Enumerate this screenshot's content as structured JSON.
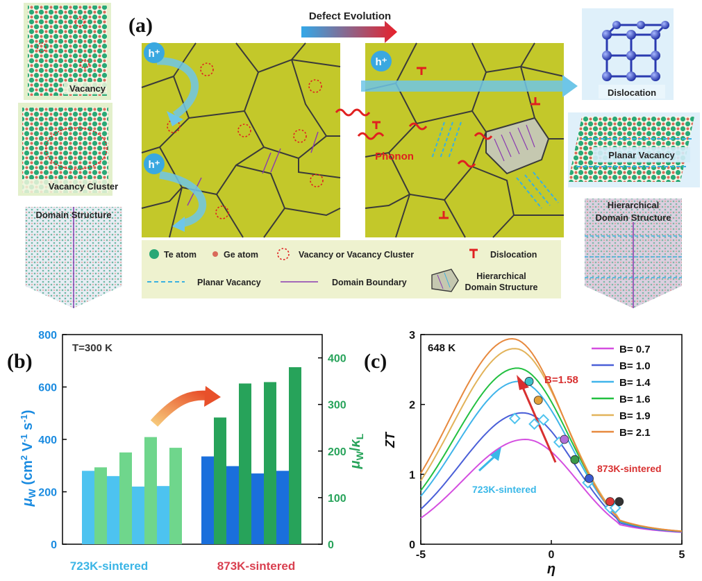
{
  "panel_a": {
    "label": "(a)",
    "arrow_title": "Defect Evolution",
    "left_insets": {
      "vacancy": "Vacancy",
      "vacancy_cluster": "Vacancy Cluster",
      "domain_structure": "Domain Structure"
    },
    "right_insets": {
      "dislocation": "Dislocation",
      "planar_vacancy": "Planar Vacancy",
      "hierarchical_domain": [
        "Hierarchical",
        "Domain Structure"
      ]
    },
    "hole": "h⁺",
    "phonon": "Phonon",
    "legend": {
      "te_atom": "Te atom",
      "ge_atom": "Ge atom",
      "vacancy": "Vacancy or Vacancy Cluster",
      "dislocation": "Dislocation",
      "planar_vacancy": "Planar Vacancy",
      "domain_boundary": "Domain Boundary",
      "hierarchical": [
        "Hierarchical",
        "Domain Structure"
      ]
    }
  },
  "colors": {
    "grain_fill": "#c3c82a",
    "grain_line": "#3a3a3a",
    "te_atom": "#2aa876",
    "ge_atom": "#d96a5a",
    "vacancy": "#e02020",
    "legend_bg": "#eef2cf",
    "bar_723_mu": "#4dc3f0",
    "bar_723_ratio": "#6fd68c",
    "bar_873_mu": "#1a6fdc",
    "bar_873_ratio": "#27a35a",
    "axis_left": "#1a8be0",
    "axis_right": "#27a35a",
    "label_723": "#3ab5e6",
    "label_873": "#d94050"
  },
  "chart_data": [
    {
      "panel": "(b)",
      "type": "bar",
      "annotation": "T=300 K",
      "categories": [
        "723K-sintered",
        "873K-sintered"
      ],
      "ylabel_left": "μW (cm2 V-1 s-1)",
      "ylabel_right": "μW/κL",
      "ylim_left": [
        0,
        800
      ],
      "ylim_right": [
        0,
        450
      ],
      "yticks_left": [
        0,
        200,
        400,
        600,
        800
      ],
      "yticks_right": [
        0,
        100,
        200,
        300,
        400
      ],
      "series": [
        {
          "group": "723K-sintered",
          "mu_w": [
            280,
            260,
            220,
            222
          ],
          "mu_w_over_kappa_L": [
            165,
            197,
            230,
            207
          ]
        },
        {
          "group": "873K-sintered",
          "mu_w": [
            335,
            298,
            270,
            280
          ],
          "mu_w_over_kappa_L": [
            272,
            345,
            348,
            380
          ]
        }
      ]
    },
    {
      "panel": "(c)",
      "type": "line",
      "annotation": "648 K",
      "xlabel": "η",
      "ylabel": "ZT",
      "xlim": [
        -5,
        5
      ],
      "ylim": [
        0,
        3
      ],
      "xticks": [
        -5,
        0,
        5
      ],
      "yticks": [
        0,
        1,
        2,
        3
      ],
      "series": [
        {
          "name": "B= 0.7",
          "color": "#d44ee0",
          "peak_eta": -1.0,
          "peak_zt": 1.5
        },
        {
          "name": "B= 1.0",
          "color": "#4a5fd8",
          "peak_eta": -1.1,
          "peak_zt": 1.88
        },
        {
          "name": "B= 1.4",
          "color": "#3fb4ea",
          "peak_eta": -1.25,
          "peak_zt": 2.33
        },
        {
          "name": "B= 1.6",
          "color": "#22c040",
          "peak_eta": -1.3,
          "peak_zt": 2.52
        },
        {
          "name": "B= 1.9",
          "color": "#e2b35a",
          "peak_eta": -1.4,
          "peak_zt": 2.8
        },
        {
          "name": "B= 2.1",
          "color": "#e7893e",
          "peak_eta": -1.5,
          "peak_zt": 2.94
        }
      ],
      "points_873": [
        {
          "eta": -0.85,
          "zt": 2.33,
          "color": "#3fc0c8"
        },
        {
          "eta": -0.5,
          "zt": 2.06,
          "color": "#e2a03a"
        },
        {
          "eta": 0.5,
          "zt": 1.5,
          "color": "#b070d8"
        },
        {
          "eta": 0.9,
          "zt": 1.21,
          "color": "#3a9a4a"
        },
        {
          "eta": 1.45,
          "zt": 0.94,
          "color": "#3a5ad0"
        },
        {
          "eta": 2.25,
          "zt": 0.61,
          "color": "#e03a3a"
        },
        {
          "eta": 2.6,
          "zt": 0.61,
          "color": "#333333"
        }
      ],
      "points_723": [
        {
          "eta": -1.4,
          "zt": 1.8
        },
        {
          "eta": -0.65,
          "zt": 1.72
        },
        {
          "eta": -0.3,
          "zt": 1.78
        },
        {
          "eta": 0.3,
          "zt": 1.46
        },
        {
          "eta": 1.4,
          "zt": 0.88
        },
        {
          "eta": 2.25,
          "zt": 0.52
        },
        {
          "eta": 2.45,
          "zt": 0.52
        }
      ],
      "annotations": {
        "b_value": "B=1.58",
        "sintered_873": "873K-sintered",
        "sintered_723": "723K-sintered"
      }
    }
  ],
  "panel_b_label": "(b)",
  "panel_c_label": "(c)"
}
